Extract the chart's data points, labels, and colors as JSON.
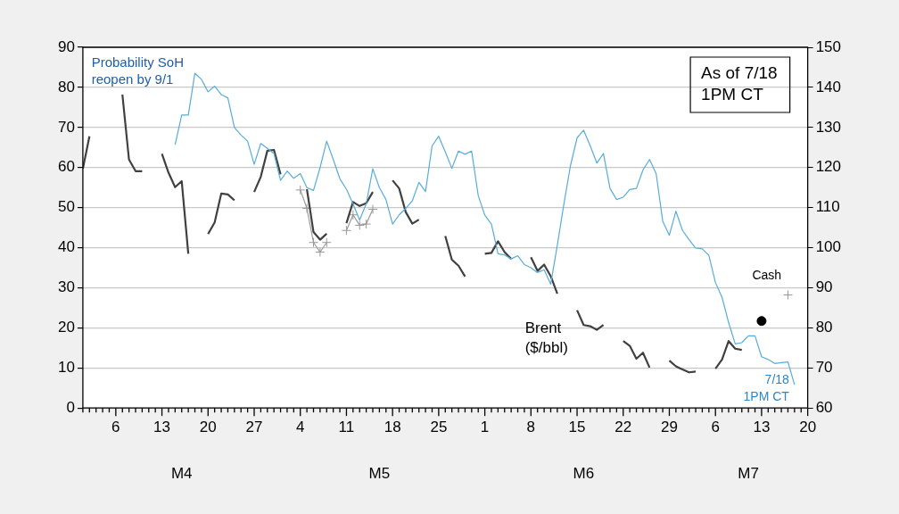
{
  "chart_data": {
    "type": "line",
    "xlim": [
      "--04-01",
      "--07-20"
    ],
    "xticks": [
      {
        "value": "--04-01",
        "label": null
      },
      {
        "value": "--04-02",
        "label": null
      },
      {
        "value": "--04-03",
        "label": null
      },
      {
        "value": "--04-04",
        "label": null
      },
      {
        "value": "--04-05",
        "label": null
      },
      {
        "value": "--04-06",
        "label": "6"
      },
      {
        "value": "--04-07",
        "label": null
      },
      {
        "value": "--04-08",
        "label": null
      },
      {
        "value": "--04-09",
        "label": null
      },
      {
        "value": "--04-10",
        "label": null
      },
      {
        "value": "--04-11",
        "label": null
      },
      {
        "value": "--04-12",
        "label": null
      },
      {
        "value": "--04-13",
        "label": "13"
      },
      {
        "value": "--04-14",
        "label": null
      },
      {
        "value": "--04-15",
        "label": null
      },
      {
        "value": "--04-16",
        "label": null
      },
      {
        "value": "--04-17",
        "label": null
      },
      {
        "value": "--04-18",
        "label": null
      },
      {
        "value": "--04-19",
        "label": null
      },
      {
        "value": "--04-20",
        "label": "20"
      },
      {
        "value": "--04-21",
        "label": null
      },
      {
        "value": "--04-22",
        "label": null
      },
      {
        "value": "--04-23",
        "label": null
      },
      {
        "value": "--04-24",
        "label": null
      },
      {
        "value": "--04-25",
        "label": null
      },
      {
        "value": "--04-26",
        "label": null
      },
      {
        "value": "--04-27",
        "label": "27"
      },
      {
        "value": "--04-28",
        "label": null
      },
      {
        "value": "--04-29",
        "label": null
      },
      {
        "value": "--04-30",
        "label": null
      },
      {
        "value": "--05-01",
        "label": null
      },
      {
        "value": "--05-02",
        "label": null
      },
      {
        "value": "--05-03",
        "label": null
      },
      {
        "value": "--05-04",
        "label": "4"
      },
      {
        "value": "--05-05",
        "label": null
      },
      {
        "value": "--05-06",
        "label": null
      },
      {
        "value": "--05-07",
        "label": null
      },
      {
        "value": "--05-08",
        "label": null
      },
      {
        "value": "--05-09",
        "label": null
      },
      {
        "value": "--05-10",
        "label": null
      },
      {
        "value": "--05-11",
        "label": "11"
      },
      {
        "value": "--05-12",
        "label": null
      },
      {
        "value": "--05-13",
        "label": null
      },
      {
        "value": "--05-14",
        "label": null
      },
      {
        "value": "--05-15",
        "label": null
      },
      {
        "value": "--05-16",
        "label": null
      },
      {
        "value": "--05-17",
        "label": null
      },
      {
        "value": "--05-18",
        "label": "18"
      },
      {
        "value": "--05-19",
        "label": null
      },
      {
        "value": "--05-20",
        "label": null
      },
      {
        "value": "--05-21",
        "label": null
      },
      {
        "value": "--05-22",
        "label": null
      },
      {
        "value": "--05-23",
        "label": null
      },
      {
        "value": "--05-24",
        "label": null
      },
      {
        "value": "--05-25",
        "label": "25"
      },
      {
        "value": "--05-26",
        "label": null
      },
      {
        "value": "--05-27",
        "label": null
      },
      {
        "value": "--05-28",
        "label": null
      },
      {
        "value": "--05-29",
        "label": null
      },
      {
        "value": "--05-30",
        "label": null
      },
      {
        "value": "--05-31",
        "label": null
      },
      {
        "value": "--06-01",
        "label": "1"
      },
      {
        "value": "--06-02",
        "label": null
      },
      {
        "value": "--06-03",
        "label": null
      },
      {
        "value": "--06-04",
        "label": null
      },
      {
        "value": "--06-05",
        "label": null
      },
      {
        "value": "--06-06",
        "label": null
      },
      {
        "value": "--06-07",
        "label": null
      },
      {
        "value": "--06-08",
        "label": "8"
      },
      {
        "value": "--06-09",
        "label": null
      },
      {
        "value": "--06-10",
        "label": null
      },
      {
        "value": "--06-11",
        "label": null
      },
      {
        "value": "--06-12",
        "label": null
      },
      {
        "value": "--06-13",
        "label": null
      },
      {
        "value": "--06-14",
        "label": null
      },
      {
        "value": "--06-15",
        "label": "15"
      },
      {
        "value": "--06-16",
        "label": null
      },
      {
        "value": "--06-17",
        "label": null
      },
      {
        "value": "--06-18",
        "label": null
      },
      {
        "value": "--06-19",
        "label": null
      },
      {
        "value": "--06-20",
        "label": null
      },
      {
        "value": "--06-21",
        "label": null
      },
      {
        "value": "--06-22",
        "label": "22"
      },
      {
        "value": "--06-23",
        "label": null
      },
      {
        "value": "--06-24",
        "label": null
      },
      {
        "value": "--06-25",
        "label": null
      },
      {
        "value": "--06-26",
        "label": null
      },
      {
        "value": "--06-27",
        "label": null
      },
      {
        "value": "--06-28",
        "label": null
      },
      {
        "value": "--06-29",
        "label": "29"
      },
      {
        "value": "--06-30",
        "label": null
      },
      {
        "value": "--07-01",
        "label": null
      },
      {
        "value": "--07-02",
        "label": null
      },
      {
        "value": "--07-03",
        "label": null
      },
      {
        "value": "--07-04",
        "label": null
      },
      {
        "value": "--07-05",
        "label": null
      },
      {
        "value": "--07-06",
        "label": "6"
      },
      {
        "value": "--07-07",
        "label": null
      },
      {
        "value": "--07-08",
        "label": null
      },
      {
        "value": "--07-09",
        "label": null
      },
      {
        "value": "--07-10",
        "label": null
      },
      {
        "value": "--07-11",
        "label": null
      },
      {
        "value": "--07-12",
        "label": null
      },
      {
        "value": "--07-13",
        "label": "13"
      },
      {
        "value": "--07-14",
        "label": null
      },
      {
        "value": "--07-15",
        "label": null
      },
      {
        "value": "--07-16",
        "label": null
      },
      {
        "value": "--07-17",
        "label": null
      },
      {
        "value": "--07-18",
        "label": null
      },
      {
        "value": "--07-19",
        "label": null
      },
      {
        "value": "--07-20",
        "label": "20"
      }
    ],
    "x2lim": [
      "--04-01",
      "--07-20"
    ],
    "x2ticks": [
      {
        "value": "--04-16",
        "label": "M4"
      },
      {
        "value": "--05-16",
        "label": "M5"
      },
      {
        "value": "--06-16",
        "label": "M6"
      },
      {
        "value": "--07-11",
        "label": "M7"
      }
    ],
    "ylim": [
      0,
      90
    ],
    "yticks": [
      0,
      10,
      20,
      30,
      40,
      50,
      60,
      70,
      80,
      90
    ],
    "y2lim": [
      60,
      150
    ],
    "y2ticks": [
      60,
      70,
      80,
      90,
      100,
      110,
      120,
      130,
      140,
      150
    ],
    "grid": "y",
    "legend": false,
    "annotations": [
      "As of 7/18\n1PM CT",
      {
        "text": "7/18\n1PM CT",
        "x": "--07-18",
        "y": 5.8
      }
    ],
    "series": [
      {
        "name": "Probability SoH reopen by 9/1",
        "color": "#56acdc",
        "marker": "none",
        "x": [
          "--04-15",
          "--04-16",
          "--04-17",
          "--04-18",
          "--04-19",
          "--04-20",
          "--04-21",
          "--04-22",
          "--04-23",
          "--04-24",
          "--04-25",
          "--04-26",
          "--04-27",
          "--04-28",
          "--04-29",
          "--04-30",
          "--05-01",
          "--05-02",
          "--05-03",
          "--05-04",
          "--05-05",
          "--05-06",
          "--05-07",
          "--05-08",
          "--05-09",
          "--05-10",
          "--05-11",
          "--05-12",
          "--05-13",
          "--05-14",
          "--05-15",
          "--05-16",
          "--05-17",
          "--05-18",
          "--05-19",
          "--05-20",
          "--05-21",
          "--05-22",
          "--05-23",
          "--05-24",
          "--05-25",
          "--05-26",
          "--05-27",
          "--05-28",
          "--05-29",
          "--05-30",
          "--05-31",
          "--06-01",
          "--06-02",
          "--06-03",
          "--06-04",
          "--06-05",
          "--06-06",
          "--06-07",
          "--06-08",
          "--06-09",
          "--06-10",
          "--06-11",
          "--06-12",
          "--06-13",
          "--06-14",
          "--06-15",
          "--06-16",
          "--06-17",
          "--06-18",
          "--06-19",
          "--06-20",
          "--06-21",
          "--06-22",
          "--06-23",
          "--06-24",
          "--06-25",
          "--06-26",
          "--06-27",
          "--06-28",
          "--06-29",
          "--06-30",
          "--07-01",
          "--07-02",
          "--07-03",
          "--07-04",
          "--07-05",
          "--07-06",
          "--07-07",
          "--07-08",
          "--07-09",
          "--07-10",
          "--07-11",
          "--07-12",
          "--07-13",
          "--07-14",
          "--07-15",
          "--07-16",
          "--07-17",
          "--07-18"
        ],
        "values": [
          65.7,
          73.1,
          73.1,
          83.5,
          82.0,
          78.9,
          80.3,
          78.2,
          77.4,
          70.0,
          68.1,
          66.6,
          60.8,
          66.0,
          64.8,
          63.5,
          56.8,
          59.1,
          57.3,
          58.5,
          55.0,
          54.3,
          60.0,
          66.6,
          62.0,
          57.2,
          54.6,
          50.9,
          46.9,
          50.9,
          59.7,
          55.0,
          52.0,
          45.9,
          48.2,
          49.8,
          51.7,
          56.3,
          54.0,
          65.4,
          67.8,
          63.9,
          59.8,
          64.1,
          63.3,
          64.1,
          53.0,
          48.1,
          45.9,
          38.5,
          38.2,
          37.2,
          38.0,
          35.8,
          35.0,
          33.8,
          34.5,
          30.9,
          40.6,
          50.9,
          60.5,
          67.4,
          69.3,
          65.4,
          61.1,
          63.5,
          54.8,
          52.0,
          52.6,
          54.5,
          54.8,
          59.4,
          62.0,
          58.5,
          46.6,
          43.1,
          49.1,
          44.3,
          42.0,
          39.9,
          39.7,
          38.1,
          31.3,
          27.6,
          21.3,
          16.0,
          16.3,
          18.0,
          18.0,
          12.8,
          12.1,
          11.1,
          11.3,
          11.5,
          5.8
        ]
      },
      {
        "name": "Brent ($/bbl)",
        "axis": "y2",
        "color": "#404040",
        "marker": "none",
        "x": [
          "--04-01",
          "--04-02",
          "--04-03",
          "--04-07",
          "--04-08",
          "--04-09",
          "--04-10",
          "--04-11",
          "--04-13",
          "--04-14",
          "--04-15",
          "--04-16",
          "--04-17",
          "--04-18",
          "--04-20",
          "--04-21",
          "--04-22",
          "--04-23",
          "--04-24",
          "--04-25",
          "--04-27",
          "--04-28",
          "--04-29",
          "--04-30",
          "--05-01",
          "--05-02",
          "--05-05",
          "--05-06",
          "--05-07",
          "--05-08",
          "--05-09",
          "--05-11",
          "--05-12",
          "--05-13",
          "--05-14",
          "--05-15",
          "--05-16",
          "--05-18",
          "--05-19",
          "--05-20",
          "--05-21",
          "--05-22",
          "--05-23",
          "--05-26",
          "--05-27",
          "--05-28",
          "--05-29",
          "--05-30",
          "--06-01",
          "--06-02",
          "--06-03",
          "--06-04",
          "--06-05",
          "--06-06",
          "--06-08",
          "--06-09",
          "--06-10",
          "--06-11",
          "--06-12",
          "--06-13",
          "--06-15",
          "--06-16",
          "--06-17",
          "--06-18",
          "--06-19",
          "--06-20",
          "--06-22",
          "--06-23",
          "--06-24",
          "--06-25",
          "--06-26",
          "--06-27",
          "--06-29",
          "--06-30",
          "--07-01",
          "--07-02",
          "--07-03",
          "--07-04",
          "--07-06",
          "--07-07",
          "--07-08",
          "--07-09",
          "--07-10"
        ],
        "values": [
          119.7,
          127.8,
          null,
          138.2,
          122.0,
          119.1,
          119.1,
          null,
          123.4,
          118.7,
          115.1,
          116.6,
          98.5,
          null,
          103.4,
          106.3,
          113.5,
          113.3,
          111.8,
          null,
          113.9,
          117.7,
          124.2,
          124.4,
          118.3,
          null,
          114.6,
          103.9,
          102.0,
          103.5,
          null,
          106.1,
          111.4,
          110.4,
          111.1,
          113.9,
          null,
          116.8,
          114.8,
          108.9,
          106.0,
          107.0,
          null,
          102.9,
          97.0,
          95.5,
          92.8,
          null,
          98.5,
          98.7,
          101.6,
          98.9,
          97.2,
          null,
          97.6,
          94.2,
          95.8,
          92.9,
          88.5,
          null,
          84.4,
          80.7,
          80.4,
          79.5,
          80.7,
          null,
          76.7,
          75.5,
          72.3,
          73.8,
          70.1,
          null,
          71.8,
          70.4,
          69.6,
          68.9,
          69.1,
          null,
          69.8,
          72.1,
          76.7,
          74.8,
          74.5
        ]
      },
      {
        "name": "Cash",
        "axis": "y2",
        "color": "#999999",
        "marker": "cross",
        "x": [
          "--05-04",
          "--05-05",
          "--05-06",
          "--05-07",
          "--05-08",
          "--05-09",
          "--05-11",
          "--05-12",
          "--05-13",
          "--05-14",
          "--05-15",
          "--05-16",
          "--07-17"
        ],
        "values": [
          114.4,
          109.8,
          101.3,
          98.9,
          101.3,
          null,
          104.3,
          108.2,
          105.6,
          105.9,
          109.6,
          null,
          88.2
        ]
      },
      {
        "type": "scatter",
        "axis": "y2",
        "color": "#000000",
        "marker": "circle",
        "x": [
          "--07-13"
        ],
        "values": [
          81.7
        ]
      }
    ]
  }
}
